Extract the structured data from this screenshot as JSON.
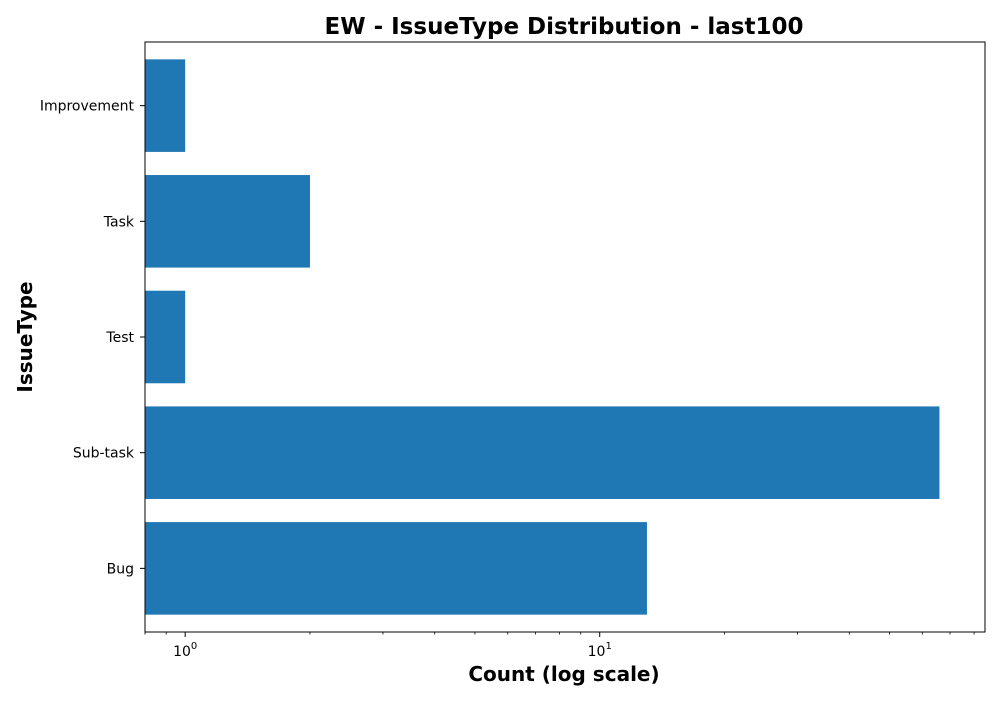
{
  "chart_data": {
    "type": "bar",
    "orientation": "horizontal",
    "title": "EW - IssueType Distribution - last100",
    "xlabel": "Count (log scale)",
    "ylabel": "IssueType",
    "x_scale": "log",
    "xlim": [
      0.8,
      85
    ],
    "categories": [
      "Bug",
      "Sub-task",
      "Test",
      "Task",
      "Improvement"
    ],
    "values": [
      13,
      66,
      1,
      2,
      1
    ],
    "x_ticks": [
      {
        "value": 1,
        "base": "10",
        "exponent": "0"
      },
      {
        "value": 10,
        "base": "10",
        "exponent": "1"
      }
    ],
    "bar_color": "#1f77b4",
    "grid": false,
    "legend": "none"
  }
}
